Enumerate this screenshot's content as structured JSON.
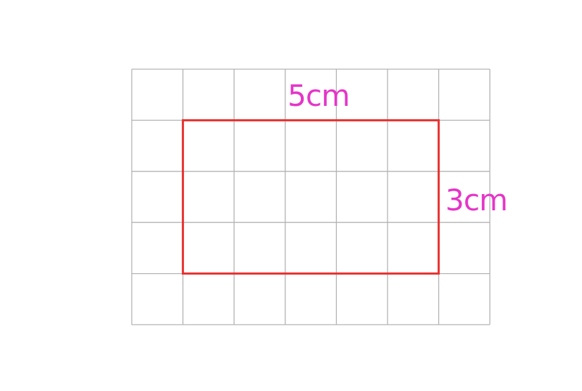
{
  "grid": {
    "columns": 7,
    "rows": 5,
    "line_color": "#b3b3b3",
    "background": "#ffffff"
  },
  "rectangle": {
    "width_cells": 5,
    "height_cells": 3,
    "start_column": 1,
    "start_row": 1,
    "stroke_color": "#e8302e"
  },
  "labels": {
    "width": "5cm",
    "height": "3cm",
    "color": "#e535c8"
  }
}
